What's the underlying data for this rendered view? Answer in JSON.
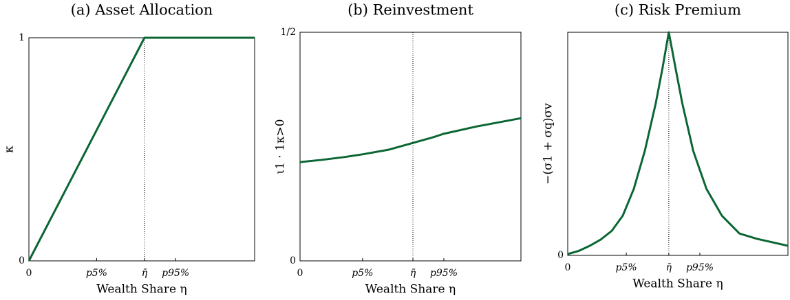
{
  "chart_data": [
    {
      "type": "line",
      "title": "(a) Asset Allocation",
      "x_label": "Wealth Share η",
      "y_label": "κ",
      "xlim": [
        0,
        1
      ],
      "ylim": [
        0,
        1
      ],
      "xticks": [
        0,
        {
          "value": 0.3,
          "label": "p5%"
        },
        {
          "value": 0.512,
          "label": "η̄"
        },
        {
          "value": 0.65,
          "label": "p95%"
        }
      ],
      "yticks": [
        0,
        1
      ],
      "series": [
        {
          "color": "#0b6633",
          "x": [
            0,
            0.512,
            1
          ],
          "values": [
            0,
            1,
            1
          ]
        }
      ]
    },
    {
      "type": "line",
      "title": "(b) Reinvestment",
      "x_label": "Wealth Share η",
      "y_label": "ι1 · 1κ>0",
      "xlim": [
        0,
        1
      ],
      "ylim": [
        0,
        0.5
      ],
      "xticks": [
        0,
        {
          "value": 0.283,
          "label": "p5%"
        },
        {
          "value": 0.511,
          "label": "η̄"
        },
        {
          "value": 0.651,
          "label": "p95%"
        }
      ],
      "yticks": [
        0,
        {
          "value": 0.5,
          "label": "1/2"
        }
      ],
      "series": [
        {
          "color": "#0b6633",
          "x": [
            0,
            0.1,
            0.2,
            0.283,
            0.4,
            0.511,
            0.6,
            0.651,
            0.8,
            0.9,
            1
          ],
          "values": [
            0.216,
            0.221,
            0.227,
            0.233,
            0.243,
            0.258,
            0.27,
            0.278,
            0.294,
            0.303,
            0.312
          ]
        }
      ]
    },
    {
      "type": "line",
      "title": "(c) Risk Premium",
      "x_label": "Wealth Share η",
      "y_label": "−(σ1 + σq)σv",
      "xlim": [
        0,
        1
      ],
      "ylim": [
        0,
        1
      ],
      "xticks": [
        0,
        {
          "value": 0.266,
          "label": "p5%"
        },
        {
          "value": 0.459,
          "label": "η̄"
        },
        {
          "value": 0.6,
          "label": "p95%"
        }
      ],
      "yticks": [
        0
      ],
      "series": [
        {
          "color": "#0b6633",
          "x": [
            0,
            0.05,
            0.1,
            0.15,
            0.2,
            0.25,
            0.3,
            0.35,
            0.4,
            0.43,
            0.459,
            0.49,
            0.52,
            0.57,
            0.63,
            0.7,
            0.78,
            0.86,
            1
          ],
          "values": [
            0.006,
            0.02,
            0.043,
            0.071,
            0.11,
            0.178,
            0.298,
            0.468,
            0.683,
            0.837,
            1,
            0.837,
            0.683,
            0.468,
            0.298,
            0.178,
            0.098,
            0.074,
            0.043
          ]
        }
      ]
    }
  ]
}
